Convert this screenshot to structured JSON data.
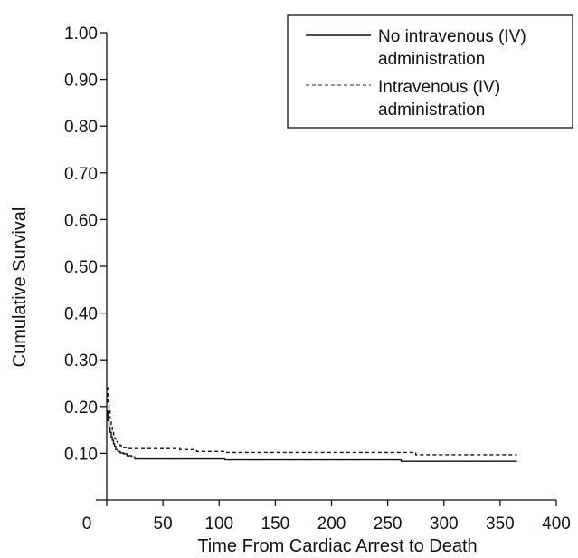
{
  "chart_data": {
    "type": "line",
    "xlabel": "Time From Cardiac Arrest to Death",
    "ylabel": "Cumulative Survival",
    "xlim": [
      0,
      400
    ],
    "ylim": [
      0,
      1.0
    ],
    "x_ticks": [
      0,
      50,
      100,
      150,
      200,
      250,
      300,
      350,
      400
    ],
    "x_tick_labels": [
      "0",
      "50",
      "100",
      "150",
      "200",
      "250",
      "300",
      "350",
      "400"
    ],
    "y_ticks": [
      0.1,
      0.2,
      0.3,
      0.4,
      0.5,
      0.6,
      0.7,
      0.8,
      0.9,
      1.0
    ],
    "y_tick_labels": [
      "0.10",
      "0.20",
      "0.30",
      "0.40",
      "0.50",
      "0.60",
      "0.70",
      "0.80",
      "0.90",
      "1.00"
    ],
    "grid": false,
    "legend_position": "top-right",
    "series": [
      {
        "name": "No intravenous (IV) administration",
        "line_style": "solid",
        "color": "#111111",
        "x": [
          0,
          1,
          2,
          3,
          4,
          5,
          6,
          7,
          8,
          10,
          12,
          15,
          18,
          22,
          25,
          30,
          40,
          60,
          105,
          150,
          200,
          262,
          300,
          350,
          365
        ],
        "y": [
          0.19,
          0.17,
          0.155,
          0.145,
          0.135,
          0.128,
          0.12,
          0.115,
          0.108,
          0.104,
          0.101,
          0.099,
          0.095,
          0.092,
          0.088,
          0.088,
          0.088,
          0.088,
          0.086,
          0.086,
          0.086,
          0.083,
          0.083,
          0.083,
          0.083
        ]
      },
      {
        "name": "Intravenous (IV) administration",
        "line_style": "dashed",
        "color": "#555555",
        "x": [
          0,
          1,
          2,
          3,
          4,
          5,
          6,
          7,
          8,
          10,
          12,
          15,
          20,
          25,
          40,
          65,
          80,
          105,
          150,
          200,
          250,
          275,
          300,
          350,
          365
        ],
        "y": [
          0.24,
          0.21,
          0.19,
          0.175,
          0.16,
          0.15,
          0.14,
          0.132,
          0.125,
          0.12,
          0.116,
          0.112,
          0.11,
          0.11,
          0.11,
          0.108,
          0.104,
          0.102,
          0.102,
          0.102,
          0.102,
          0.097,
          0.097,
          0.097,
          0.097
        ]
      }
    ]
  }
}
